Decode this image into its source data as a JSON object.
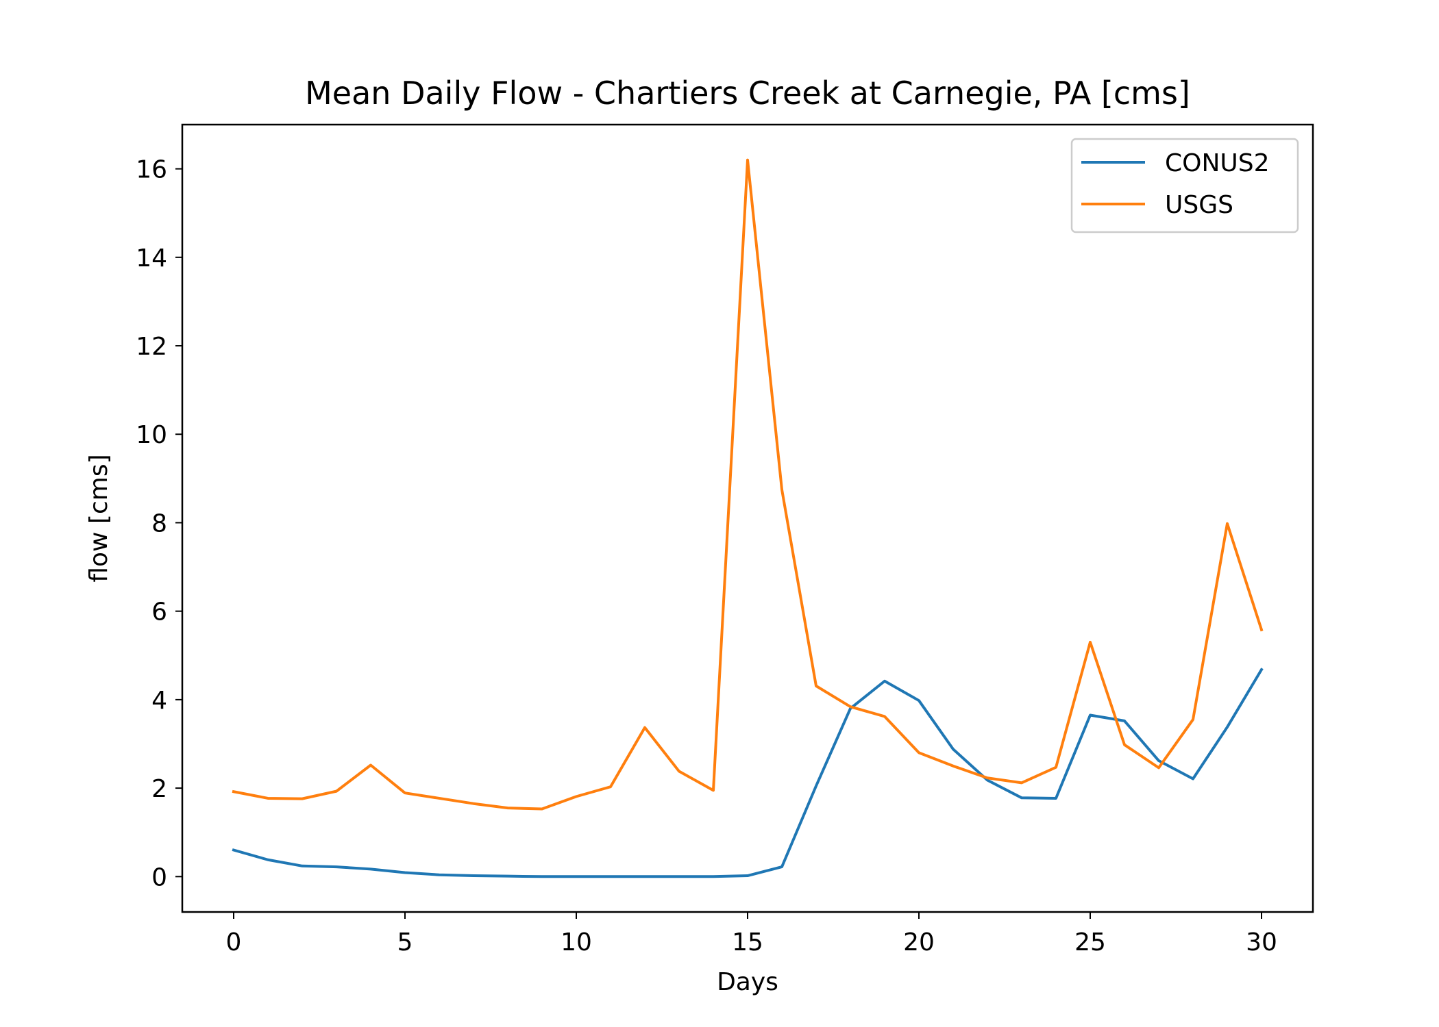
{
  "chart_data": {
    "type": "line",
    "title": "Mean Daily Flow - Chartiers Creek at Carnegie, PA [cms]",
    "xlabel": "Days",
    "ylabel": "flow [cms]",
    "xlim": [
      -1.5,
      31.5
    ],
    "ylim": [
      -0.8,
      17.0
    ],
    "x_ticks": [
      0,
      5,
      10,
      15,
      20,
      25,
      30
    ],
    "y_ticks": [
      0,
      2,
      4,
      6,
      8,
      10,
      12,
      14,
      16
    ],
    "grid": false,
    "legend": "top-right",
    "x": [
      0,
      1,
      2,
      3,
      4,
      5,
      6,
      7,
      8,
      9,
      10,
      11,
      12,
      13,
      14,
      15,
      16,
      17,
      18,
      19,
      20,
      21,
      22,
      23,
      24,
      25,
      26,
      27,
      28,
      29,
      30
    ],
    "series": [
      {
        "name": "CONUS2",
        "color": "#1f77b4",
        "values": [
          0.6,
          0.38,
          0.24,
          0.22,
          0.17,
          0.09,
          0.04,
          0.02,
          0.01,
          0.0,
          0.0,
          0.0,
          0.0,
          0.0,
          0.0,
          0.02,
          0.22,
          2.05,
          3.8,
          4.42,
          3.98,
          2.88,
          2.18,
          1.78,
          1.77,
          3.65,
          3.52,
          2.62,
          2.21,
          3.38,
          4.68
        ]
      },
      {
        "name": "USGS",
        "color": "#ff7f0e",
        "values": [
          1.92,
          1.77,
          1.76,
          1.93,
          2.52,
          1.89,
          1.77,
          1.65,
          1.55,
          1.53,
          1.81,
          2.03,
          3.37,
          2.38,
          1.95,
          16.2,
          8.75,
          4.31,
          3.84,
          3.62,
          2.8,
          2.5,
          2.23,
          2.12,
          2.47,
          5.3,
          2.98,
          2.46,
          3.55,
          7.98,
          5.58
        ]
      }
    ]
  }
}
